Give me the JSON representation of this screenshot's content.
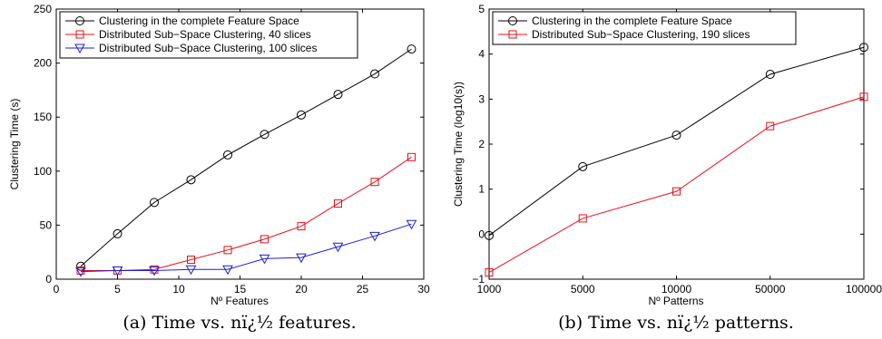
{
  "chart_data": [
    {
      "type": "line",
      "xlabel": "Nº Features",
      "ylabel": "Clustering Time (s)",
      "xlim": [
        0,
        30
      ],
      "ylim": [
        0,
        250
      ],
      "xticks": [
        "0",
        "5",
        "10",
        "15",
        "20",
        "25",
        "30"
      ],
      "yticks": [
        "0",
        "50",
        "100",
        "150",
        "200",
        "250"
      ],
      "grid": false,
      "legend_position": "top-left",
      "caption": "(a) Time vs. nï¿½ features.",
      "series": [
        {
          "name": "Clustering in the complete Feature Space",
          "color": "#000000",
          "marker": "circle",
          "x": [
            2,
            5,
            8,
            11,
            14,
            17,
            20,
            23,
            26,
            29
          ],
          "y": [
            12,
            42,
            71,
            92,
            115,
            134,
            152,
            171,
            190,
            213
          ]
        },
        {
          "name": "Distributed Sub−Space Clustering, 40 slices",
          "color": "#e8101a",
          "marker": "square",
          "x": [
            2,
            5,
            8,
            11,
            14,
            17,
            20,
            23,
            26,
            29
          ],
          "y": [
            8,
            8,
            9,
            18,
            27,
            37,
            49,
            70,
            90,
            113
          ]
        },
        {
          "name": "Distributed Sub−Space Clustering, 100 slices",
          "color": "#1f1fd6",
          "marker": "triangle-down",
          "x": [
            2,
            5,
            8,
            11,
            14,
            17,
            20,
            23,
            26,
            29
          ],
          "y": [
            7,
            8,
            8,
            9,
            9,
            19,
            20,
            30,
            40,
            51
          ]
        }
      ]
    },
    {
      "type": "line",
      "xlabel": "Nº Patterns",
      "ylabel": "Clustering Time (log10(s))",
      "xcategories": [
        "1000",
        "5000",
        "10000",
        "50000",
        "100000"
      ],
      "ylim": [
        -1,
        5
      ],
      "yticks": [
        "−1",
        "0",
        "1",
        "2",
        "3",
        "4",
        "5"
      ],
      "grid": false,
      "legend_position": "top-left",
      "caption": "(b) Time vs. nï¿½ patterns.",
      "series": [
        {
          "name": "Clustering in the complete Feature Space",
          "color": "#000000",
          "marker": "circle",
          "y": [
            -0.03,
            1.5,
            2.2,
            3.55,
            4.15
          ]
        },
        {
          "name": "Distributed Sub−Space Clustering, 190 slices",
          "color": "#e8101a",
          "marker": "square",
          "y": [
            -0.85,
            0.35,
            0.95,
            2.4,
            3.05
          ]
        }
      ]
    }
  ]
}
